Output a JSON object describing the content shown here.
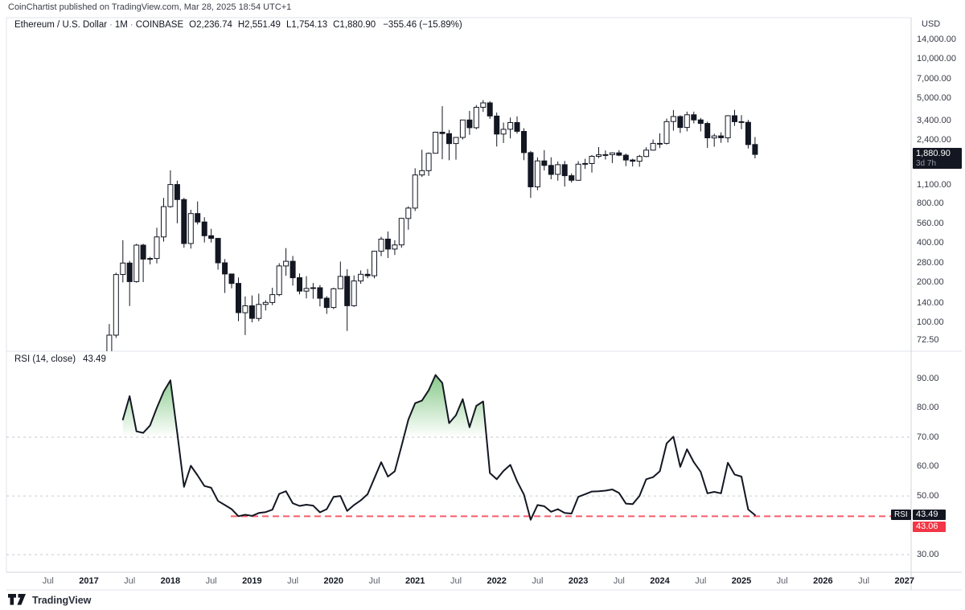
{
  "header": {
    "attribution": "CoinChartist published on TradingView.com, Mar 28, 2025 18:54 UTC+1"
  },
  "main_legend": {
    "symbol": "Ethereum / U.S. Dollar",
    "interval": "1M",
    "exchange": "COINBASE",
    "open": "O2,236.74",
    "high": "H2,551.49",
    "low": "L1,754.13",
    "close": "C1,880.90",
    "change": "−355.46 (−15.89%)"
  },
  "price_axis": {
    "currency": "USD",
    "labels": [
      {
        "text": "14,000.00",
        "value": 14000
      },
      {
        "text": "10,000.00",
        "value": 10000
      },
      {
        "text": "7,000.00",
        "value": 7000
      },
      {
        "text": "5,000.00",
        "value": 5000
      },
      {
        "text": "3,400.00",
        "value": 3400
      },
      {
        "text": "2,400.00",
        "value": 2400
      },
      {
        "text": "1,100.00",
        "value": 1100
      },
      {
        "text": "800.00",
        "value": 800
      },
      {
        "text": "560.00",
        "value": 560
      },
      {
        "text": "400.00",
        "value": 400
      },
      {
        "text": "280.00",
        "value": 280
      },
      {
        "text": "200.00",
        "value": 200
      },
      {
        "text": "140.00",
        "value": 140
      },
      {
        "text": "100.00",
        "value": 100
      },
      {
        "text": "72.50",
        "value": 72.5
      }
    ],
    "last_price_badge": {
      "price": "1,880.90",
      "countdown": "3d 7h"
    }
  },
  "rsi_pane": {
    "legend_title": "RSI (14, close)",
    "legend_value": "43.49",
    "axis_labels": [
      {
        "text": "90.00",
        "value": 90
      },
      {
        "text": "80.00",
        "value": 80
      },
      {
        "text": "70.00",
        "value": 70
      },
      {
        "text": "60.00",
        "value": 60
      },
      {
        "text": "50.00",
        "value": 50
      },
      {
        "text": "30.00",
        "value": 30
      }
    ],
    "badges": {
      "name": "RSI",
      "value": "43.49",
      "alert_value": "43.06"
    }
  },
  "time_axis": {
    "labels": [
      {
        "text": "Jul",
        "month": -8,
        "year": false
      },
      {
        "text": "2017",
        "month": -2,
        "year": true
      },
      {
        "text": "Jul",
        "month": 4,
        "year": false
      },
      {
        "text": "2018",
        "month": 10,
        "year": true
      },
      {
        "text": "Jul",
        "month": 16,
        "year": false
      },
      {
        "text": "2019",
        "month": 22,
        "year": true
      },
      {
        "text": "Jul",
        "month": 28,
        "year": false
      },
      {
        "text": "2020",
        "month": 34,
        "year": true
      },
      {
        "text": "Jul",
        "month": 40,
        "year": false
      },
      {
        "text": "2021",
        "month": 46,
        "year": true
      },
      {
        "text": "Jul",
        "month": 52,
        "year": false
      },
      {
        "text": "2022",
        "month": 58,
        "year": true
      },
      {
        "text": "Jul",
        "month": 64,
        "year": false
      },
      {
        "text": "2023",
        "month": 70,
        "year": true
      },
      {
        "text": "Jul",
        "month": 76,
        "year": false
      },
      {
        "text": "2024",
        "month": 82,
        "year": true
      },
      {
        "text": "Jul",
        "month": 88,
        "year": false
      },
      {
        "text": "2025",
        "month": 94,
        "year": true
      },
      {
        "text": "Jul",
        "month": 100,
        "year": false
      },
      {
        "text": "2026",
        "month": 106,
        "year": true
      },
      {
        "text": "Jul",
        "month": 112,
        "year": false
      },
      {
        "text": "2027",
        "month": 118,
        "year": true
      }
    ]
  },
  "footer": {
    "brand": "TradingView"
  },
  "colors": {
    "bg": "#ffffff",
    "ink": "#131722",
    "axis_text": "#363a45",
    "muted_text": "#5d606b",
    "frame": "#e0e3eb",
    "axis_line": "#d1d4dc",
    "badge_bg": "#131722",
    "alert_red": "#f23645",
    "rsi_band_gray": "#9b9ea7",
    "overbought_green": "#4caf50",
    "countdown_gray": "#9598a1"
  },
  "chart_data": {
    "type": "candlestick_with_rsi_line",
    "title": "Ethereum / U.S. Dollar",
    "interval": "1M",
    "exchange": "COINBASE",
    "price_scale": "log",
    "price_axis_ticks": [
      14000,
      10000,
      7000,
      5000,
      3400,
      2400,
      1100,
      800,
      560,
      400,
      280,
      200,
      140,
      100,
      72.5
    ],
    "last_price": 1880.9,
    "last_candle": {
      "open": 2236.74,
      "high": 2551.49,
      "low": 1754.13,
      "close": 1880.9,
      "change": -355.46,
      "change_pct": -15.89
    },
    "candles_start_month": "2017-03",
    "candles_ohlc": [
      [
        15.8,
        55.6,
        14.8,
        50.2
      ],
      [
        50.2,
        97,
        44.5,
        79.9
      ],
      [
        79.9,
        238,
        76.2,
        230.6
      ],
      [
        230.6,
        420,
        201,
        281.7
      ],
      [
        281.7,
        293,
        133,
        203.6
      ],
      [
        203.6,
        395,
        200,
        385.4
      ],
      [
        385.4,
        395,
        202,
        301.8
      ],
      [
        301.8,
        314,
        275,
        305.5
      ],
      [
        305.5,
        522,
        280,
        445.2
      ],
      [
        445.2,
        881,
        410,
        755.8
      ],
      [
        755.8,
        1424,
        742,
        1111.8
      ],
      [
        1111.8,
        1190,
        565,
        855.2
      ],
      [
        855.2,
        880,
        368,
        396.4
      ],
      [
        396.4,
        715,
        363,
        669.9
      ],
      [
        669.9,
        828,
        553,
        577.8
      ],
      [
        577.8,
        628,
        404,
        454.6
      ],
      [
        454.6,
        513,
        403,
        433.9
      ],
      [
        433.9,
        436,
        251,
        283.1
      ],
      [
        283.1,
        302,
        167,
        232.9
      ],
      [
        232.9,
        233,
        181,
        197.4
      ],
      [
        197.4,
        219,
        102,
        118.3
      ],
      [
        118.3,
        157,
        80,
        133.4
      ],
      [
        133.4,
        160,
        100,
        107.1
      ],
      [
        107.1,
        165,
        102,
        136.7
      ],
      [
        136.7,
        147,
        123,
        141.5
      ],
      [
        141.5,
        183,
        135,
        162.3
      ],
      [
        162.3,
        281,
        158,
        268.1
      ],
      [
        268.1,
        366,
        226,
        290.7
      ],
      [
        290.7,
        319,
        190,
        218.1
      ],
      [
        218.1,
        235,
        163,
        172.6
      ],
      [
        172.6,
        224,
        152,
        180.9
      ],
      [
        180.9,
        199,
        151,
        183.2
      ],
      [
        183.2,
        192,
        132,
        152.5
      ],
      [
        152.5,
        158,
        116,
        129.6
      ],
      [
        129.6,
        183,
        126,
        179.9
      ],
      [
        179.9,
        289,
        179,
        223.1
      ],
      [
        223.1,
        253,
        86,
        133.6
      ],
      [
        133.6,
        227,
        131,
        206.0
      ],
      [
        206.0,
        248,
        196,
        231.5
      ],
      [
        231.5,
        254,
        216,
        225.7
      ],
      [
        225.7,
        347,
        216,
        346.4
      ],
      [
        346.4,
        447,
        318,
        428.4
      ],
      [
        428.4,
        489,
        308,
        359.8
      ],
      [
        359.8,
        420,
        325,
        386.7
      ],
      [
        386.7,
        621,
        368,
        615.2
      ],
      [
        615.2,
        760,
        505,
        737.0
      ],
      [
        737.0,
        1477,
        700,
        1314.2
      ],
      [
        1314.2,
        2042,
        1270,
        1418.0
      ],
      [
        1418.0,
        1947,
        1293,
        1918.4
      ],
      [
        1918.4,
        2798,
        1915,
        2773.2
      ],
      [
        2773.2,
        4372,
        1730,
        2706.2
      ],
      [
        2706.2,
        2891,
        1700,
        2274.5
      ],
      [
        2274.5,
        2543,
        1718,
        2531.1
      ],
      [
        2531.1,
        3382,
        2447,
        3433.7
      ],
      [
        3433.7,
        4028,
        2652,
        3000.4
      ],
      [
        3000.4,
        4460,
        2917,
        4288.1
      ],
      [
        4288.1,
        4868,
        3959,
        4631.5
      ],
      [
        4631.5,
        4780,
        3503,
        3682.6
      ],
      [
        3682.6,
        3917,
        2160,
        2688.3
      ],
      [
        2688.3,
        3283,
        2300,
        2919.7
      ],
      [
        2919.7,
        3582,
        2492,
        3282.8
      ],
      [
        3282.8,
        3666,
        2710,
        2815.5
      ],
      [
        2815.5,
        2974,
        1702,
        1942.5
      ],
      [
        1942.5,
        1998,
        881,
        1067.3
      ],
      [
        1067.3,
        1786,
        1007,
        1681.0
      ],
      [
        1681.0,
        2030,
        1422,
        1554.1
      ],
      [
        1554.1,
        1789,
        1220,
        1328.7
      ],
      [
        1328.7,
        1663,
        1190,
        1572.7
      ],
      [
        1572.7,
        1680,
        1074,
        1297.3
      ],
      [
        1297.3,
        1352,
        1150,
        1196.8
      ],
      [
        1196.8,
        1674,
        1190,
        1585.6
      ],
      [
        1585.6,
        1742,
        1461,
        1606.4
      ],
      [
        1606.4,
        1861,
        1368,
        1821.7
      ],
      [
        1821.7,
        2141,
        1767,
        1871.0
      ],
      [
        1871.0,
        2018,
        1721,
        1874.4
      ],
      [
        1874.4,
        1950,
        1618,
        1934.2
      ],
      [
        1934.2,
        2029,
        1825,
        1856.6
      ],
      [
        1856.6,
        1909,
        1533,
        1705.6
      ],
      [
        1705.6,
        1745,
        1525,
        1671.0
      ],
      [
        1671.0,
        1866,
        1517,
        1815.3
      ],
      [
        1815.3,
        2135,
        1793,
        2028.6
      ],
      [
        2028.6,
        2446,
        2008,
        2281.5
      ],
      [
        2281.5,
        2718,
        2103,
        2283.1
      ],
      [
        2283.1,
        3524,
        2235,
        3341.8
      ],
      [
        3341.8,
        4093,
        2852,
        3647.4
      ],
      [
        3647.4,
        3729,
        2739,
        3014.1
      ],
      [
        3014.1,
        3977,
        2817,
        3762.3
      ],
      [
        3762.3,
        3974,
        3240,
        3438.0
      ],
      [
        3438.0,
        3563,
        2815,
        3232.5
      ],
      [
        3232.5,
        3334,
        2111,
        2513.4
      ],
      [
        2513.4,
        2703,
        2151,
        2602.2
      ],
      [
        2602.2,
        2768,
        2306,
        2518.1
      ],
      [
        2518.1,
        3736,
        2317,
        3703.4
      ],
      [
        3703.4,
        4106,
        3101,
        3336.2
      ],
      [
        3336.2,
        3742,
        2924,
        3300.5
      ],
      [
        3300.5,
        3440,
        2087,
        2236.7
      ],
      [
        2236.74,
        2551.49,
        1754.13,
        1880.9
      ]
    ],
    "rsi": {
      "period": 14,
      "source": "close",
      "current": 43.49,
      "levels": {
        "overbought": 70,
        "middle": 50,
        "oversold": 30,
        "alert_line": 43.06
      },
      "alert_line_start_month": "2018-10",
      "start_month": "2017-06",
      "values": [
        76,
        84,
        72,
        71.5,
        74,
        80,
        85.5,
        89.4,
        71.5,
        53.1,
        60.3,
        57,
        53.4,
        52.8,
        48.3,
        46.9,
        45.5,
        43.1,
        43.6,
        43.2,
        44.2,
        44.5,
        45.3,
        50.7,
        51.6,
        47.5,
        46.6,
        47.0,
        46.7,
        44.4,
        45.5,
        49.7,
        50.0,
        44.9,
        46.9,
        48.5,
        50.6,
        56.0,
        61.5,
        56.6,
        58.4,
        67.0,
        76.0,
        81.6,
        82.5,
        86.0,
        91.2,
        88.5,
        74.8,
        77.5,
        83.0,
        73.4,
        80.7,
        82.2,
        57.8,
        55.7,
        58.5,
        60.6,
        55.0,
        50.5,
        41.9,
        46.9,
        46.5,
        44.6,
        45.5,
        44.2,
        44.0,
        49.7,
        50.6,
        51.5,
        51.6,
        51.8,
        52.2,
        51.0,
        47.4,
        47.2,
        50.0,
        55.7,
        56.4,
        58.4,
        67.9,
        70.2,
        59.9,
        65.9,
        61.5,
        58.2,
        50.9,
        51.4,
        50.9,
        61.3,
        57.3,
        56.6,
        45.4,
        43.49
      ]
    },
    "layout": {
      "grid": "off",
      "rsi_band_style": "dashed",
      "legend_position": "top-left",
      "axis_position": "right"
    }
  }
}
